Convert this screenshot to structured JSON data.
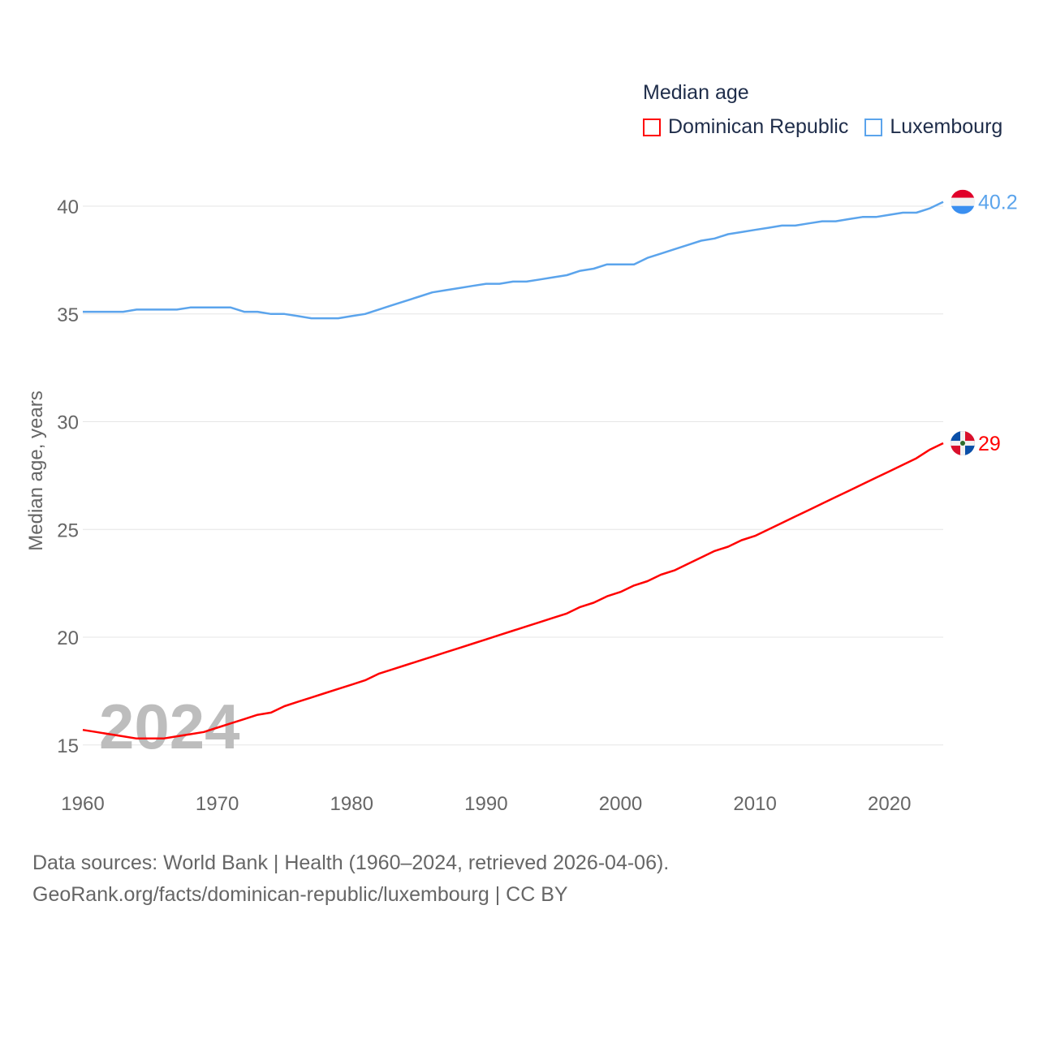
{
  "chart_data": {
    "type": "line",
    "title": "Median age",
    "xlabel": "",
    "ylabel": "Median age, years",
    "xlim": [
      1960,
      2024
    ],
    "ylim": [
      13,
      42
    ],
    "yticks": [
      15,
      20,
      25,
      30,
      35,
      40
    ],
    "xticks": [
      1960,
      1970,
      1980,
      1990,
      2000,
      2010,
      2020
    ],
    "grid": true,
    "legend_position": "top-right",
    "year_watermark": "2024",
    "x": [
      1960,
      1961,
      1962,
      1963,
      1964,
      1965,
      1966,
      1967,
      1968,
      1969,
      1970,
      1971,
      1972,
      1973,
      1974,
      1975,
      1976,
      1977,
      1978,
      1979,
      1980,
      1981,
      1982,
      1983,
      1984,
      1985,
      1986,
      1987,
      1988,
      1989,
      1990,
      1991,
      1992,
      1993,
      1994,
      1995,
      1996,
      1997,
      1998,
      1999,
      2000,
      2001,
      2002,
      2003,
      2004,
      2005,
      2006,
      2007,
      2008,
      2009,
      2010,
      2011,
      2012,
      2013,
      2014,
      2015,
      2016,
      2017,
      2018,
      2019,
      2020,
      2021,
      2022,
      2023,
      2024
    ],
    "series": [
      {
        "name": "Dominican Republic",
        "color": "#ff0000",
        "end_label": "29",
        "values": [
          15.7,
          15.6,
          15.5,
          15.4,
          15.3,
          15.3,
          15.3,
          15.4,
          15.5,
          15.6,
          15.8,
          16.0,
          16.2,
          16.4,
          16.5,
          16.8,
          17.0,
          17.2,
          17.4,
          17.6,
          17.8,
          18.0,
          18.3,
          18.5,
          18.7,
          18.9,
          19.1,
          19.3,
          19.5,
          19.7,
          19.9,
          20.1,
          20.3,
          20.5,
          20.7,
          20.9,
          21.1,
          21.4,
          21.6,
          21.9,
          22.1,
          22.4,
          22.6,
          22.9,
          23.1,
          23.4,
          23.7,
          24.0,
          24.2,
          24.5,
          24.7,
          25.0,
          25.3,
          25.6,
          25.9,
          26.2,
          26.5,
          26.8,
          27.1,
          27.4,
          27.7,
          28.0,
          28.3,
          28.7,
          29.0
        ]
      },
      {
        "name": "Luxembourg",
        "color": "#5ba4ec",
        "end_label": "40.2",
        "values": [
          35.1,
          35.1,
          35.1,
          35.1,
          35.2,
          35.2,
          35.2,
          35.2,
          35.3,
          35.3,
          35.3,
          35.3,
          35.1,
          35.1,
          35.0,
          35.0,
          34.9,
          34.8,
          34.8,
          34.8,
          34.9,
          35.0,
          35.2,
          35.4,
          35.6,
          35.8,
          36.0,
          36.1,
          36.2,
          36.3,
          36.4,
          36.4,
          36.5,
          36.5,
          36.6,
          36.7,
          36.8,
          37.0,
          37.1,
          37.3,
          37.3,
          37.3,
          37.6,
          37.8,
          38.0,
          38.2,
          38.4,
          38.5,
          38.7,
          38.8,
          38.9,
          39.0,
          39.1,
          39.1,
          39.2,
          39.3,
          39.3,
          39.4,
          39.5,
          39.5,
          39.6,
          39.7,
          39.7,
          39.9,
          40.2
        ]
      }
    ]
  },
  "footer": {
    "line1": "Data sources: World Bank | Health (1960–2024, retrieved 2026-04-06).",
    "line2": "GeoRank.org/facts/dominican-republic/luxembourg | CC BY"
  }
}
